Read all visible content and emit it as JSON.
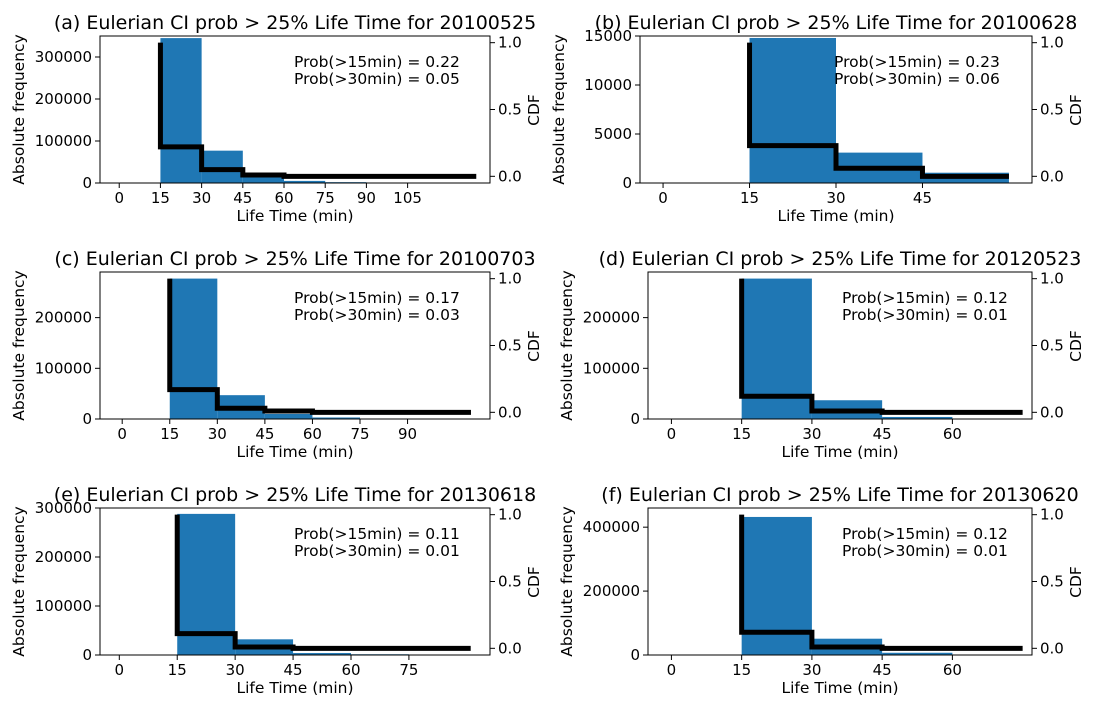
{
  "colors": {
    "bar": "#1f77b4",
    "cdf": "#000000",
    "axes": "#000000"
  },
  "chart_data": [
    {
      "type": "bar",
      "title": "(a) Eulerian CI prob > 25% Life Time for 20100525",
      "xlabel": "Life Time (min)",
      "ylabel": "Absolute frequency",
      "y2label": "CDF",
      "xlim": [
        -7,
        135
      ],
      "ylim": [
        0,
        350000
      ],
      "y2lim": [
        -0.05,
        1.05
      ],
      "xticks": [
        0,
        15,
        30,
        45,
        60,
        75,
        90,
        105
      ],
      "xtick_labels": [
        "0",
        "15",
        "30",
        "45",
        "60",
        "75",
        "90",
        "105"
      ],
      "yticks": [
        0,
        100000,
        200000,
        300000
      ],
      "ytick_labels": [
        "0",
        "100000",
        "200000",
        "300000"
      ],
      "y2ticks": [
        0,
        0.5,
        1.0
      ],
      "y2tick_labels": [
        "0.0",
        "0.5",
        "1.0"
      ],
      "bins": [
        [
          15,
          30,
          345000
        ],
        [
          30,
          45,
          77000
        ],
        [
          45,
          60,
          17000
        ],
        [
          60,
          75,
          5000
        ],
        [
          75,
          90,
          2000
        ],
        [
          90,
          105,
          1000
        ],
        [
          105,
          120,
          500
        ],
        [
          120,
          130,
          300
        ]
      ],
      "cdf_series": {
        "x": [
          15,
          30,
          45,
          60,
          130
        ],
        "values": [
          0.22,
          0.05,
          0.01,
          0.0,
          0.0
        ],
        "top": 1.0
      },
      "annotations": [
        "Prob(>15min) = 0.22",
        "Prob(>30min) = 0.05"
      ]
    },
    {
      "type": "bar",
      "title": "(b) Eulerian CI prob > 25% Life Time for 20100628",
      "xlabel": "Life Time (min)",
      "ylabel": "Absolute frequency",
      "y2label": "CDF",
      "xlim": [
        -4,
        64
      ],
      "ylim": [
        0,
        15000
      ],
      "y2lim": [
        -0.05,
        1.05
      ],
      "xticks": [
        0,
        15,
        30,
        45
      ],
      "xtick_labels": [
        "0",
        "15",
        "30",
        "45"
      ],
      "yticks": [
        0,
        5000,
        10000,
        15000
      ],
      "ytick_labels": [
        "0",
        "5000",
        "10000",
        "15000"
      ],
      "y2ticks": [
        0,
        0.5,
        1.0
      ],
      "y2tick_labels": [
        "0.0",
        "0.5",
        "1.0"
      ],
      "bins": [
        [
          15,
          30,
          14800
        ],
        [
          30,
          45,
          3100
        ],
        [
          45,
          60,
          1050
        ]
      ],
      "cdf_series": {
        "x": [
          15,
          30,
          45,
          60
        ],
        "values": [
          0.23,
          0.06,
          0.0,
          0.0
        ],
        "top": 1.0
      },
      "annotations": [
        "Prob(>15min) = 0.23",
        "Prob(>30min) = 0.06"
      ]
    },
    {
      "type": "bar",
      "title": "(c) Eulerian CI prob > 25% Life Time for 20100703",
      "xlabel": "Life Time (min)",
      "ylabel": "Absolute frequency",
      "y2label": "CDF",
      "xlim": [
        -7,
        116
      ],
      "ylim": [
        0,
        290000
      ],
      "y2lim": [
        -0.05,
        1.05
      ],
      "xticks": [
        0,
        15,
        30,
        45,
        60,
        75,
        90
      ],
      "xtick_labels": [
        "0",
        "15",
        "30",
        "45",
        "60",
        "75",
        "90"
      ],
      "yticks": [
        0,
        100000,
        200000
      ],
      "ytick_labels": [
        "0",
        "100000",
        "200000"
      ],
      "y2ticks": [
        0,
        0.5,
        1.0
      ],
      "y2tick_labels": [
        "0.0",
        "0.5",
        "1.0"
      ],
      "bins": [
        [
          15,
          30,
          277000
        ],
        [
          30,
          45,
          47000
        ],
        [
          45,
          60,
          10000
        ],
        [
          60,
          75,
          3000
        ],
        [
          75,
          90,
          1000
        ],
        [
          90,
          105,
          500
        ],
        [
          105,
          110,
          300
        ]
      ],
      "cdf_series": {
        "x": [
          15,
          30,
          45,
          60,
          110
        ],
        "values": [
          0.17,
          0.03,
          0.01,
          0.0,
          0.0
        ],
        "top": 1.0
      },
      "annotations": [
        "Prob(>15min) = 0.17",
        "Prob(>30min) = 0.03"
      ]
    },
    {
      "type": "bar",
      "title": "(d) Eulerian CI prob > 25% Life Time for 20120523",
      "xlabel": "Life Time (min)",
      "ylabel": "Absolute frequency",
      "y2label": "CDF",
      "xlim": [
        -5,
        77
      ],
      "ylim": [
        0,
        290000
      ],
      "y2lim": [
        -0.05,
        1.05
      ],
      "xticks": [
        0,
        15,
        30,
        45,
        60
      ],
      "xtick_labels": [
        "0",
        "15",
        "30",
        "45",
        "60"
      ],
      "yticks": [
        0,
        100000,
        200000
      ],
      "ytick_labels": [
        "0",
        "100000",
        "200000"
      ],
      "y2ticks": [
        0,
        0.5,
        1.0
      ],
      "y2tick_labels": [
        "0.0",
        "0.5",
        "1.0"
      ],
      "bins": [
        [
          15,
          30,
          277000
        ],
        [
          30,
          45,
          37000
        ],
        [
          45,
          60,
          4000
        ],
        [
          60,
          75,
          500
        ]
      ],
      "cdf_series": {
        "x": [
          15,
          30,
          45,
          75
        ],
        "values": [
          0.12,
          0.01,
          0.0,
          0.0
        ],
        "top": 1.0
      },
      "annotations": [
        "Prob(>15min) = 0.12",
        "Prob(>30min) = 0.01"
      ]
    },
    {
      "type": "bar",
      "title": "(e) Eulerian CI prob > 25% Life Time for 20130618",
      "xlabel": "Life Time (min)",
      "ylabel": "Absolute frequency",
      "y2label": "CDF",
      "xlim": [
        -5,
        96
      ],
      "ylim": [
        0,
        300000
      ],
      "y2lim": [
        -0.05,
        1.05
      ],
      "xticks": [
        0,
        15,
        30,
        45,
        60,
        75
      ],
      "xtick_labels": [
        "0",
        "15",
        "30",
        "45",
        "60",
        "75"
      ],
      "yticks": [
        0,
        100000,
        200000,
        300000
      ],
      "ytick_labels": [
        "0",
        "100000",
        "200000",
        "300000"
      ],
      "y2ticks": [
        0,
        0.5,
        1.0
      ],
      "y2tick_labels": [
        "0.0",
        "0.5",
        "1.0"
      ],
      "bins": [
        [
          15,
          30,
          288000
        ],
        [
          30,
          45,
          32000
        ],
        [
          45,
          60,
          4000
        ],
        [
          60,
          75,
          1500
        ],
        [
          75,
          90,
          500
        ]
      ],
      "cdf_series": {
        "x": [
          15,
          30,
          45,
          91
        ],
        "values": [
          0.11,
          0.01,
          0.0,
          0.0
        ],
        "top": 1.0
      },
      "annotations": [
        "Prob(>15min) = 0.11",
        "Prob(>30min) = 0.01"
      ]
    },
    {
      "type": "bar",
      "title": "(f) Eulerian CI prob > 25% Life Time for 20130620",
      "xlabel": "Life Time (min)",
      "ylabel": "Absolute frequency",
      "y2label": "CDF",
      "xlim": [
        -5,
        77
      ],
      "ylim": [
        0,
        460000
      ],
      "y2lim": [
        -0.05,
        1.05
      ],
      "xticks": [
        0,
        15,
        30,
        45,
        60
      ],
      "xtick_labels": [
        "0",
        "15",
        "30",
        "45",
        "60"
      ],
      "yticks": [
        0,
        200000,
        400000
      ],
      "ytick_labels": [
        "0",
        "200000",
        "400000"
      ],
      "y2ticks": [
        0,
        0.5,
        1.0
      ],
      "y2tick_labels": [
        "0.0",
        "0.5",
        "1.0"
      ],
      "bins": [
        [
          15,
          30,
          432000
        ],
        [
          30,
          45,
          51000
        ],
        [
          45,
          60,
          7000
        ],
        [
          60,
          75,
          1000
        ]
      ],
      "cdf_series": {
        "x": [
          15,
          30,
          45,
          75
        ],
        "values": [
          0.12,
          0.01,
          0.0,
          0.0
        ],
        "top": 1.0
      },
      "annotations": [
        "Prob(>15min) = 0.12",
        "Prob(>30min) = 0.01"
      ]
    }
  ]
}
